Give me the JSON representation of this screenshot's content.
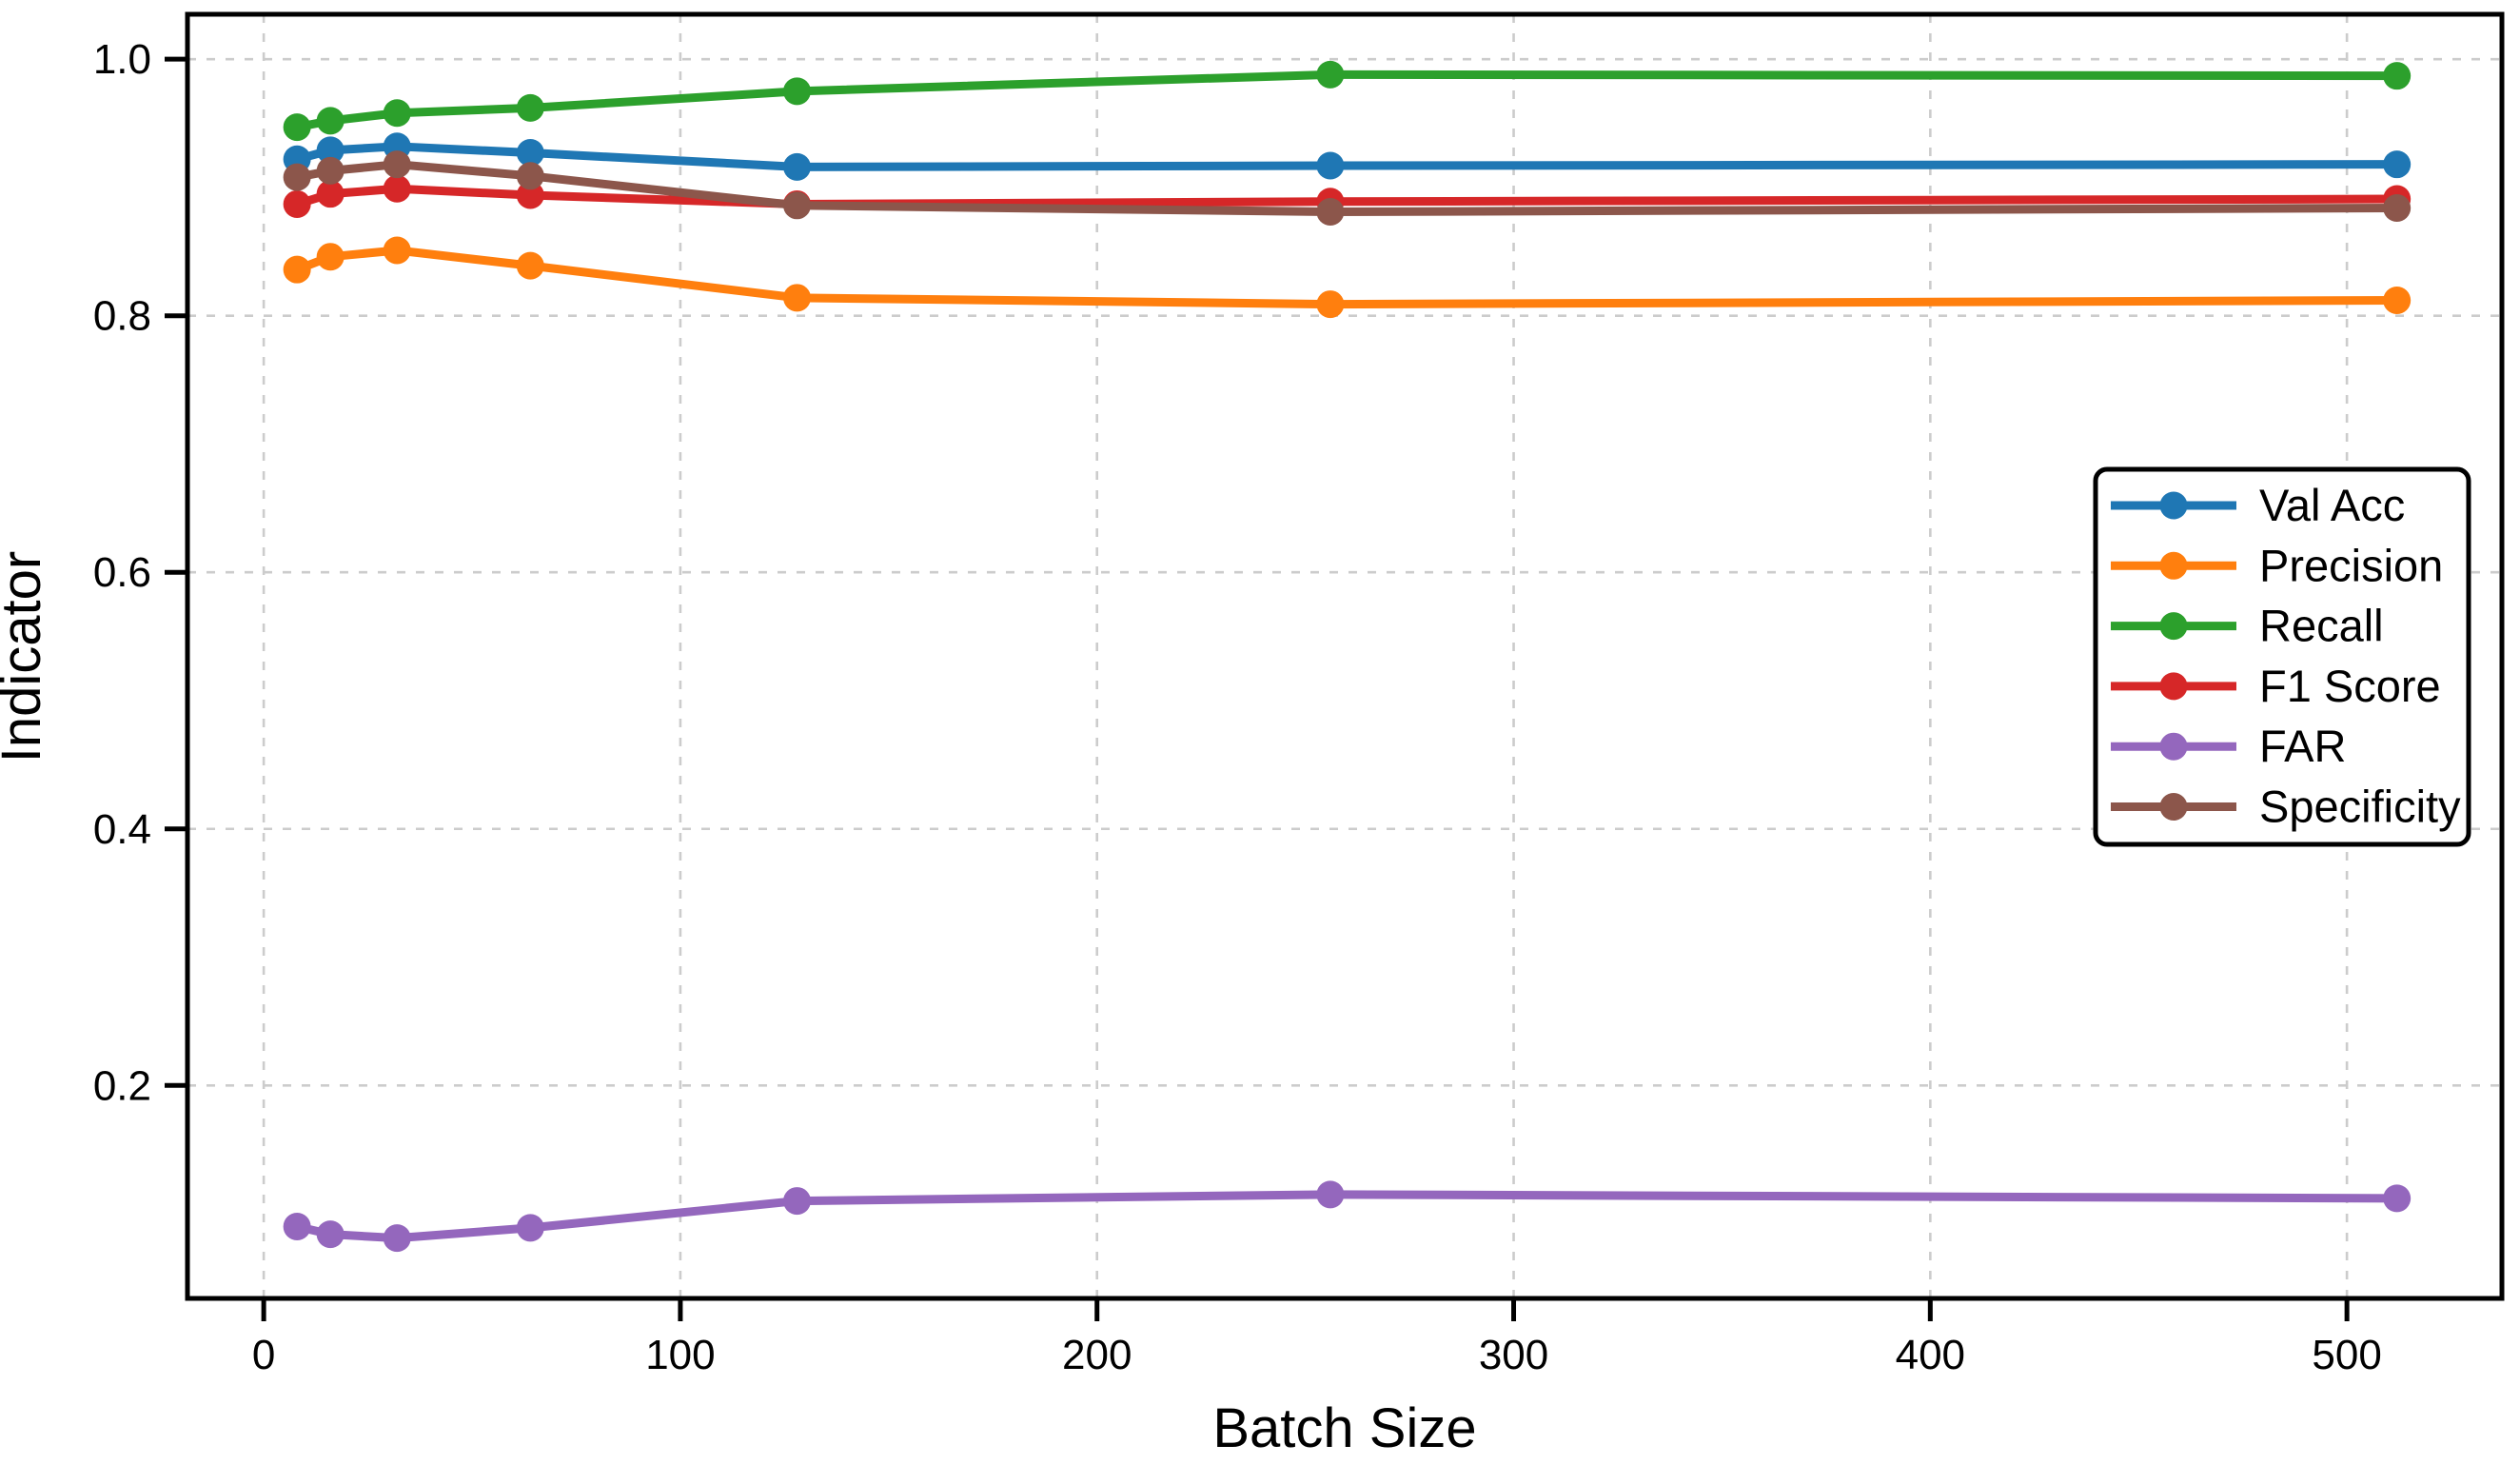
{
  "figure": {
    "background": "#ffffff"
  },
  "chart_data": {
    "type": "line",
    "title": "",
    "xlabel": "Batch Size",
    "ylabel": "Indicator",
    "x": [
      8,
      16,
      32,
      64,
      128,
      256,
      512
    ],
    "series": [
      {
        "name": "Val Acc",
        "color": "#1f77b4",
        "values": [
          0.922,
          0.929,
          0.932,
          0.927,
          0.916,
          0.917,
          0.918
        ]
      },
      {
        "name": "Precision",
        "color": "#ff7f0e",
        "values": [
          0.836,
          0.846,
          0.851,
          0.839,
          0.814,
          0.809,
          0.812
        ]
      },
      {
        "name": "Recall",
        "color": "#2ca02c",
        "values": [
          0.947,
          0.952,
          0.958,
          0.962,
          0.975,
          0.988,
          0.987
        ]
      },
      {
        "name": "F1 Score",
        "color": "#d62728",
        "values": [
          0.887,
          0.895,
          0.899,
          0.894,
          0.887,
          0.889,
          0.891
        ]
      },
      {
        "name": "FAR",
        "color": "#9467bd",
        "values": [
          0.09,
          0.084,
          0.081,
          0.089,
          0.11,
          0.115,
          0.112
        ]
      },
      {
        "name": "Specificity",
        "color": "#8c564b",
        "values": [
          0.908,
          0.913,
          0.918,
          0.909,
          0.886,
          0.881,
          0.884
        ]
      }
    ],
    "x_tick_labels": [
      "0",
      "100",
      "200",
      "300",
      "400",
      "500"
    ],
    "x_tick_values": [
      0,
      100,
      200,
      300,
      400,
      500
    ],
    "y_tick_labels": [
      "0.2",
      "0.4",
      "0.6",
      "0.8",
      "1.0"
    ],
    "y_tick_values": [
      0.2,
      0.4,
      0.6,
      0.8,
      1.0
    ],
    "xlim": [
      -18.3,
      537.2
    ],
    "ylim": [
      0.034,
      1.035
    ],
    "grid": true,
    "grid_style": "dashed",
    "grid_color": "#cccccc",
    "spine_color": "#000000",
    "legend_position": "center right",
    "legend_order": [
      "Val Acc",
      "Precision",
      "Recall",
      "F1 Score",
      "FAR",
      "Specificity"
    ]
  }
}
